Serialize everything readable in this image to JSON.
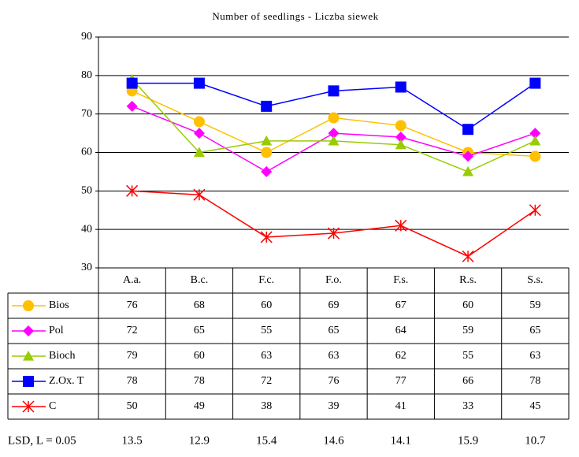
{
  "chart_data": {
    "type": "line",
    "title": "Number of seedlings - Liczba siewek",
    "categories": [
      "A.a.",
      "B.c.",
      "F.c.",
      "F.o.",
      "F.s.",
      "R.s.",
      "S.s."
    ],
    "series": [
      {
        "name": "Bios",
        "color": "#ffc000",
        "marker": "circle",
        "values": [
          76,
          68,
          60,
          69,
          67,
          60,
          59
        ]
      },
      {
        "name": "Pol",
        "color": "#ff00ff",
        "marker": "diamond",
        "values": [
          72,
          65,
          55,
          65,
          64,
          59,
          65
        ]
      },
      {
        "name": "Bioch",
        "color": "#99cc00",
        "marker": "triangle",
        "values": [
          79,
          60,
          63,
          63,
          62,
          55,
          63
        ]
      },
      {
        "name": "Z.Ox. T",
        "color": "#0000ff",
        "marker": "square",
        "values": [
          78,
          78,
          72,
          76,
          77,
          66,
          78
        ]
      },
      {
        "name": "C",
        "color": "#ff0000",
        "marker": "star",
        "values": [
          50,
          49,
          38,
          39,
          41,
          33,
          45
        ]
      }
    ],
    "ylim": [
      30,
      90
    ],
    "yticks": [
      30,
      40,
      50,
      60,
      70,
      80,
      90
    ],
    "grid": true,
    "lsd": {
      "label": "LSD, L = 0.05",
      "values": [
        13.5,
        12.9,
        15.4,
        14.6,
        14.1,
        15.9,
        10.7
      ]
    }
  }
}
